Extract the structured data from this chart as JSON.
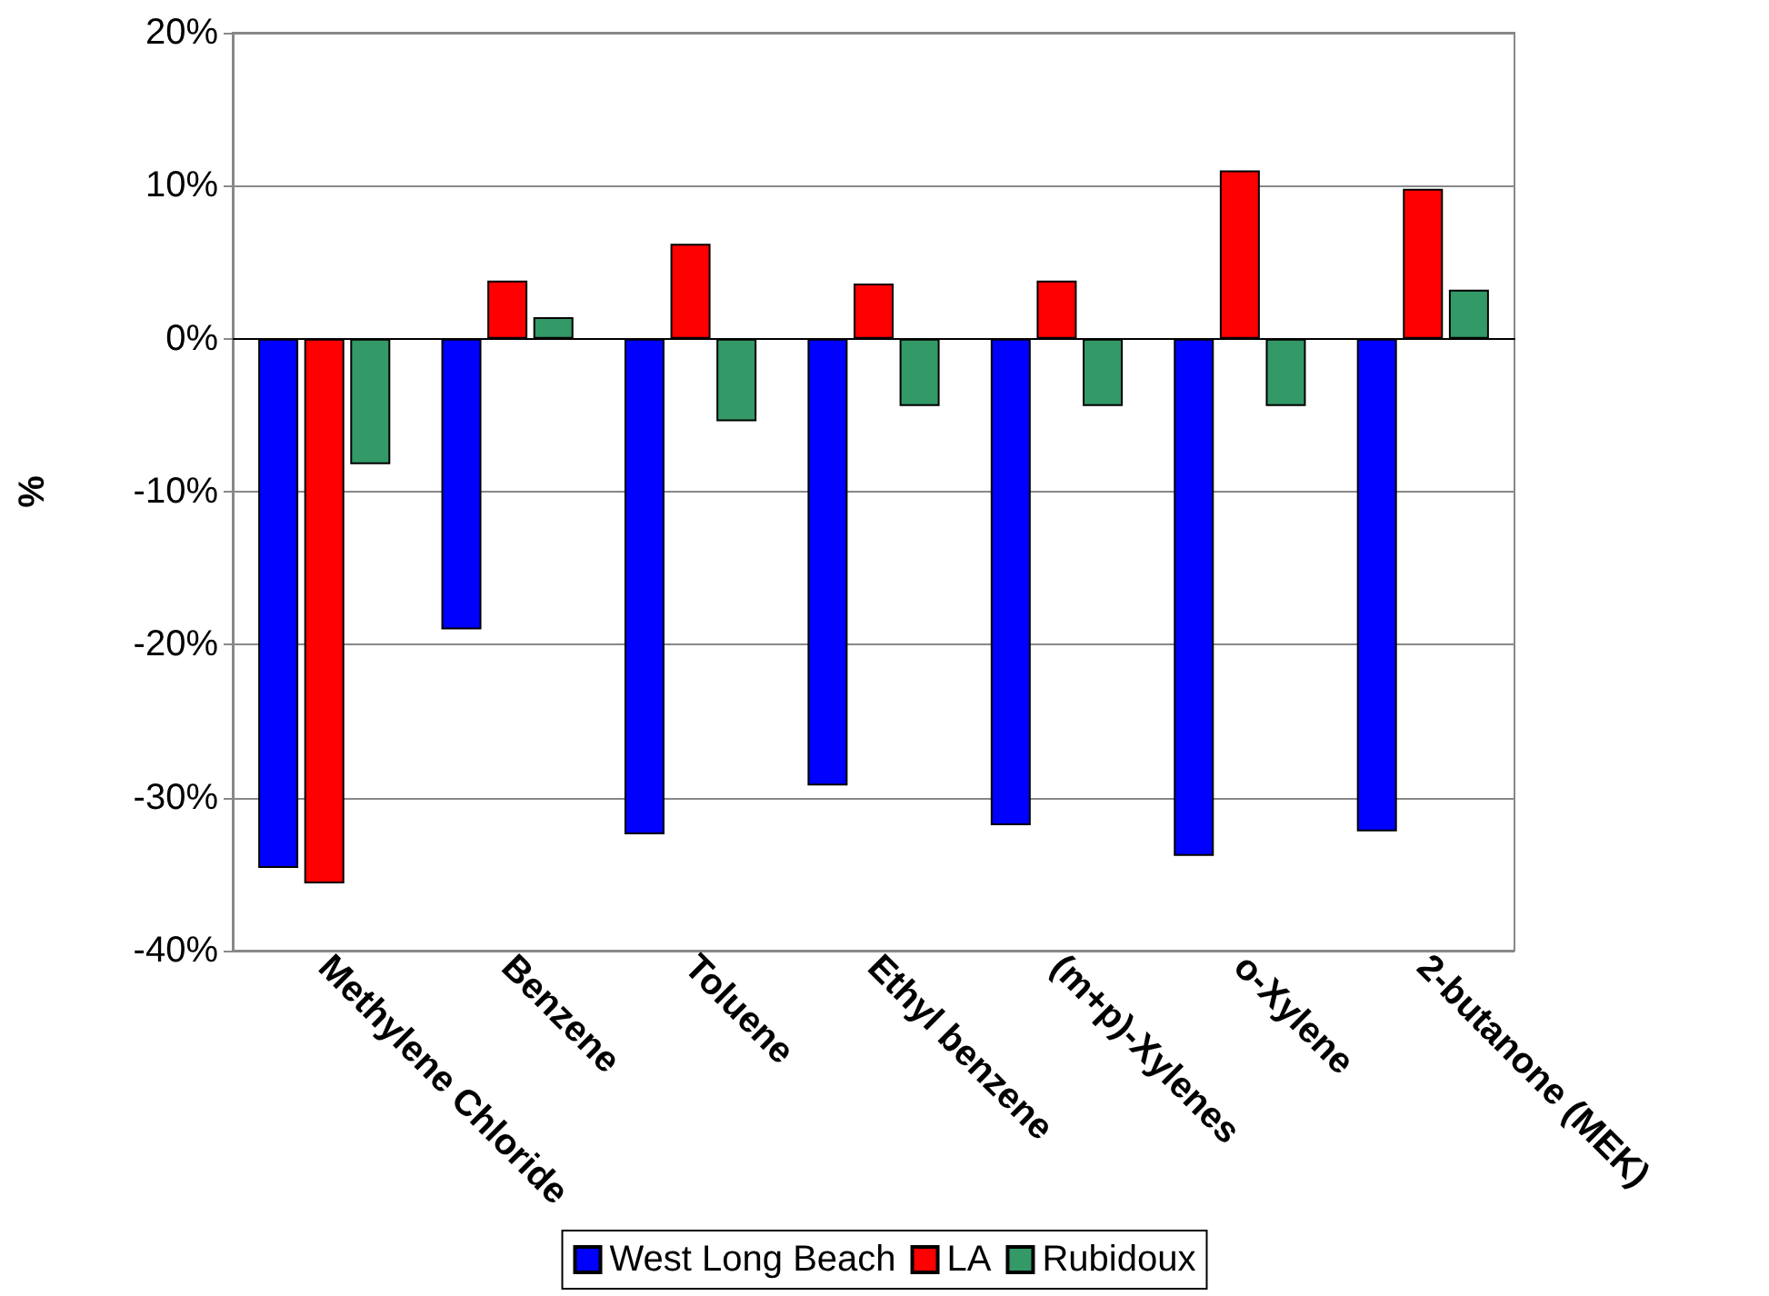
{
  "chart_data": {
    "type": "bar",
    "ylabel": "%",
    "categories": [
      "Methylene Chloride",
      "Benzene",
      "Toluene",
      "Ethyl benzene",
      "(m+p)-Xylenes",
      "o-Xylene",
      "2-butanone (MEK)"
    ],
    "series": [
      {
        "name": "West Long Beach",
        "color": "#0000ff",
        "values": [
          -34.6,
          -19.0,
          -32.4,
          -29.2,
          -31.8,
          -33.8,
          -32.2
        ]
      },
      {
        "name": "LA",
        "color": "#ff0000",
        "values": [
          -35.6,
          3.8,
          6.2,
          3.6,
          3.8,
          11.0,
          9.8
        ]
      },
      {
        "name": "Rubidoux",
        "color": "#339966",
        "values": [
          -8.2,
          1.4,
          -5.4,
          -4.4,
          -4.4,
          -4.4,
          3.2
        ]
      }
    ],
    "ylim": [
      -40,
      20
    ],
    "yticks": [
      {
        "value": -40,
        "label": "-40%"
      },
      {
        "value": -30,
        "label": "-30%"
      },
      {
        "value": -20,
        "label": "-20%"
      },
      {
        "value": -10,
        "label": "-10%"
      },
      {
        "value": 0,
        "label": "0%"
      },
      {
        "value": 10,
        "label": "10%"
      },
      {
        "value": 20,
        "label": "20%"
      }
    ],
    "grid": "y",
    "legend": "bottom"
  }
}
